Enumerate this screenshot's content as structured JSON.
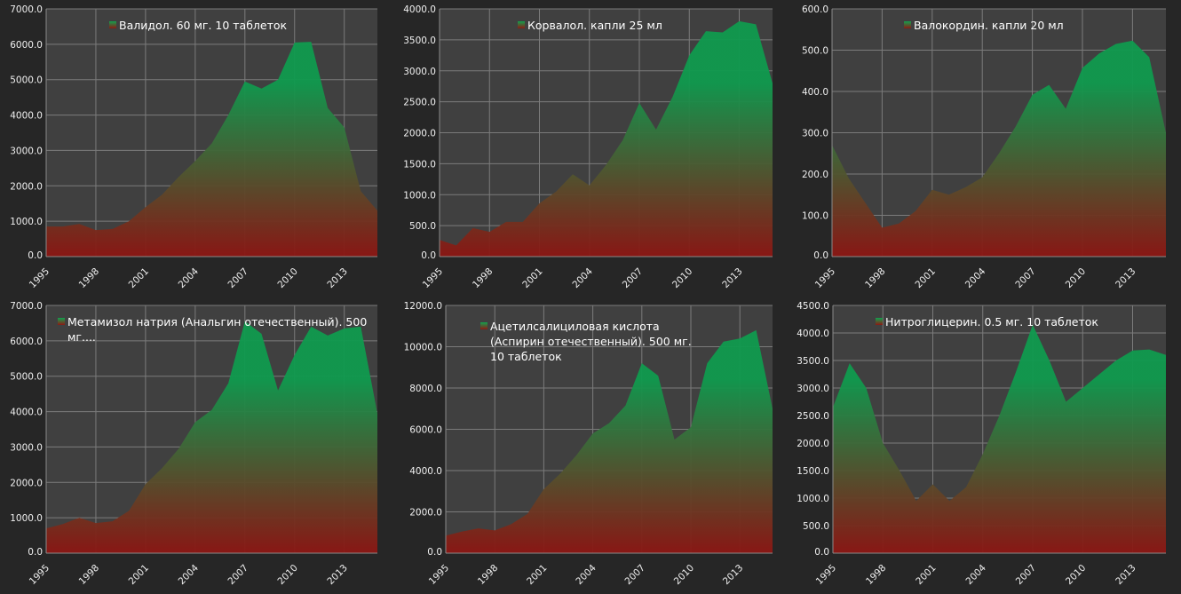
{
  "colors": {
    "top": "#0f9a4e",
    "bottom": "#8c1512",
    "plot_bg": "#404040",
    "grid": "#7b7b7b"
  },
  "chart_data": [
    {
      "type": "area",
      "legend": "Валидол. 60 мг. 10 таблеток",
      "ylim": [
        0,
        7000
      ],
      "y_ticks": [
        "0.0",
        "1000.0",
        "2000.0",
        "3000.0",
        "4000.0",
        "5000.0",
        "6000.0",
        "7000.0"
      ],
      "x_ticks": [
        "1995",
        "1998",
        "2001",
        "2004",
        "2007",
        "2010",
        "2013"
      ],
      "x": [
        1995,
        1996,
        1997,
        1998,
        1999,
        2000,
        2001,
        2002,
        2003,
        2004,
        2005,
        2006,
        2007,
        2008,
        2009,
        2010,
        2011,
        2012,
        2013,
        2014,
        2015
      ],
      "values": [
        850,
        850,
        920,
        750,
        780,
        1000,
        1400,
        1750,
        2250,
        2700,
        3200,
        4000,
        4950,
        4750,
        5000,
        6050,
        6070,
        4200,
        3650,
        1850,
        1300
      ]
    },
    {
      "type": "area",
      "legend": "Корвалол. капли 25 мл",
      "ylim": [
        0,
        4000
      ],
      "y_ticks": [
        "0.0",
        "500.0",
        "1000.0",
        "1500.0",
        "2000.0",
        "2500.0",
        "3000.0",
        "3500.0",
        "4000.0"
      ],
      "x_ticks": [
        "1995",
        "1998",
        "2001",
        "2004",
        "2007",
        "2010",
        "2013"
      ],
      "x": [
        1995,
        1996,
        1997,
        1998,
        1999,
        2000,
        2001,
        2002,
        2003,
        2004,
        2005,
        2006,
        2007,
        2008,
        2009,
        2010,
        2011,
        2012,
        2013,
        2014,
        2015
      ],
      "values": [
        270,
        180,
        460,
        400,
        560,
        560,
        860,
        1050,
        1330,
        1150,
        1480,
        1880,
        2480,
        2050,
        2580,
        3250,
        3640,
        3620,
        3800,
        3750,
        2800
      ]
    },
    {
      "type": "area",
      "legend": "Валокордин. капли 20 мл",
      "ylim": [
        0,
        600
      ],
      "y_ticks": [
        "0.0",
        "100.0",
        "200.0",
        "300.0",
        "400.0",
        "500.0",
        "600.0"
      ],
      "x_ticks": [
        "1995",
        "1998",
        "2001",
        "2004",
        "2007",
        "2010",
        "2013"
      ],
      "x": [
        1995,
        1996,
        1997,
        1998,
        1999,
        2000,
        2001,
        2002,
        2003,
        2004,
        2005,
        2006,
        2007,
        2008,
        2009,
        2010,
        2011,
        2012,
        2013,
        2014,
        2015
      ],
      "values": [
        270,
        190,
        130,
        70,
        80,
        110,
        162,
        150,
        168,
        192,
        250,
        315,
        392,
        416,
        358,
        457,
        492,
        515,
        523,
        483,
        300
      ]
    },
    {
      "type": "area",
      "legend": "Метамизол натрия (Анальгин отечественный). 500 мг....",
      "ylim": [
        0,
        7000
      ],
      "y_ticks": [
        "0.0",
        "1000.0",
        "2000.0",
        "3000.0",
        "4000.0",
        "5000.0",
        "6000.0",
        "7000.0"
      ],
      "x_ticks": [
        "1995",
        "1998",
        "2001",
        "2004",
        "2007",
        "2010",
        "2013"
      ],
      "x": [
        1995,
        1996,
        1997,
        1998,
        1999,
        2000,
        2001,
        2002,
        2003,
        2004,
        2005,
        2006,
        2007,
        2008,
        2009,
        2010,
        2011,
        2012,
        2013,
        2014,
        2015
      ],
      "values": [
        700,
        820,
        1000,
        850,
        900,
        1200,
        1950,
        2400,
        2950,
        3700,
        4050,
        4800,
        6550,
        6200,
        4600,
        5600,
        6400,
        6150,
        6350,
        6400,
        3950
      ]
    },
    {
      "type": "area",
      "legend": "Ацетилсалициловая кислота (Аспирин отечественный). 500 мг. 10 таблеток",
      "ylim": [
        0,
        12000
      ],
      "y_ticks": [
        "0.0",
        "2000.0",
        "4000.0",
        "6000.0",
        "8000.0",
        "10000.0",
        "12000.0"
      ],
      "x_ticks": [
        "1995",
        "1998",
        "2001",
        "2004",
        "2007",
        "2010",
        "2013"
      ],
      "x": [
        1995,
        1996,
        1997,
        1998,
        1999,
        2000,
        2001,
        2002,
        2003,
        2004,
        2005,
        2006,
        2007,
        2008,
        2009,
        2010,
        2011,
        2012,
        2013,
        2014,
        2015
      ],
      "values": [
        850,
        1050,
        1200,
        1100,
        1400,
        1900,
        3100,
        3850,
        4750,
        5800,
        6300,
        7150,
        9200,
        8600,
        5500,
        6100,
        9200,
        10250,
        10400,
        10800,
        7000
      ]
    },
    {
      "type": "area",
      "legend": "Нитроглицерин. 0.5 мг. 10 таблеток",
      "ylim": [
        0,
        4500
      ],
      "y_ticks": [
        "0.0",
        "500.0",
        "1000.0",
        "1500.0",
        "2000.0",
        "2500.0",
        "3000.0",
        "3500.0",
        "4000.0",
        "4500.0"
      ],
      "x_ticks": [
        "1995",
        "1998",
        "2001",
        "2004",
        "2007",
        "2010",
        "2013"
      ],
      "x": [
        1995,
        1996,
        1997,
        1998,
        1999,
        2000,
        2001,
        2002,
        2003,
        2004,
        2005,
        2006,
        2007,
        2008,
        2009,
        2010,
        2011,
        2012,
        2013,
        2014,
        2015
      ],
      "values": [
        2650,
        3450,
        3000,
        2000,
        1500,
        950,
        1250,
        950,
        1200,
        1800,
        2500,
        3300,
        4150,
        3500,
        2750,
        3000,
        3250,
        3500,
        3680,
        3700,
        3600
      ]
    }
  ]
}
